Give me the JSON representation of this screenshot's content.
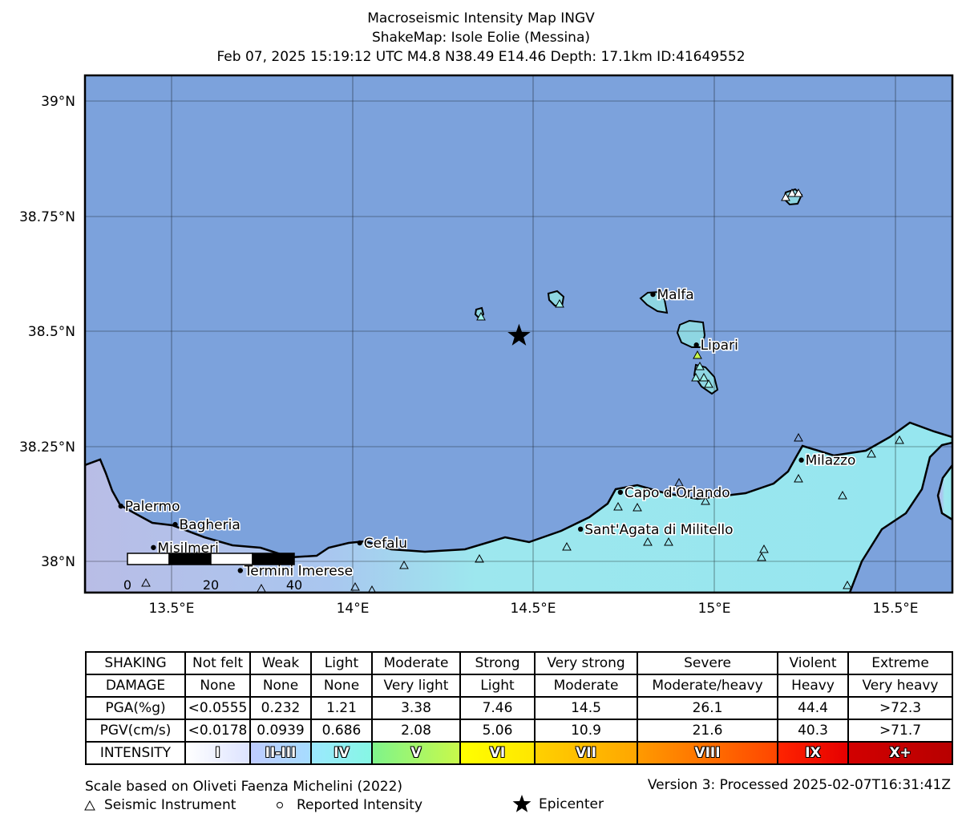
{
  "header": {
    "line1": "Macroseismic Intensity Map INGV",
    "line2": "ShakeMap: Isole Eolie (Messina)",
    "line3": "Feb 07, 2025 15:19:12 UTC M4.8 N38.49 E14.46 Depth: 17.1km ID:41649552"
  },
  "map": {
    "lat_ticks": [
      "39°N",
      "38.75°N",
      "38.5°N",
      "38.25°N",
      "38°N"
    ],
    "lon_ticks": [
      "13.5°E",
      "14°E",
      "14.5°E",
      "15°E",
      "15.5°E"
    ],
    "sea_color": "#7ca2dc",
    "land_color": "#aee6ef",
    "epicenter": {
      "lon": 14.46,
      "lat": 38.49
    },
    "places": [
      {
        "name": "Palermo",
        "lon": 13.36,
        "lat": 38.12
      },
      {
        "name": "Bagheria",
        "lon": 13.51,
        "lat": 38.08
      },
      {
        "name": "Misilmeri",
        "lon": 13.45,
        "lat": 38.03
      },
      {
        "name": "Termini Imerese",
        "lon": 13.69,
        "lat": 37.98
      },
      {
        "name": "Cefalu",
        "lon": 14.02,
        "lat": 38.04
      },
      {
        "name": "Capo d'Orlando",
        "lon": 14.74,
        "lat": 38.15
      },
      {
        "name": "Sant'Agata di Militello",
        "lon": 14.63,
        "lat": 38.07
      },
      {
        "name": "Malfa",
        "lon": 14.83,
        "lat": 38.58
      },
      {
        "name": "Lipari",
        "lon": 14.95,
        "lat": 38.47
      },
      {
        "name": "Milazzo",
        "lon": 15.24,
        "lat": 38.22
      }
    ],
    "scale_bar": {
      "labels": [
        "0",
        "20",
        "40"
      ]
    }
  },
  "legend": {
    "shaking": {
      "label": "SHAKING",
      "values": [
        "Not felt",
        "Weak",
        "Light",
        "Moderate",
        "Strong",
        "Very strong",
        "Severe",
        "Violent",
        "Extreme"
      ]
    },
    "damage": {
      "label": "DAMAGE",
      "values": [
        "None",
        "None",
        "None",
        "Very light",
        "Light",
        "Moderate",
        "Moderate/heavy",
        "Heavy",
        "Very heavy"
      ]
    },
    "pga": {
      "label": "PGA(%g)",
      "values": [
        "<0.0555",
        "0.232",
        "1.21",
        "3.38",
        "7.46",
        "14.5",
        "26.1",
        "44.4",
        ">72.3"
      ]
    },
    "pgv": {
      "label": "PGV(cm/s)",
      "values": [
        "<0.0178",
        "0.0939",
        "0.686",
        "2.08",
        "5.06",
        "10.9",
        "21.6",
        "40.3",
        ">71.7"
      ]
    },
    "intensity": {
      "label": "INTENSITY",
      "values": [
        "I",
        "II-III",
        "IV",
        "V",
        "VI",
        "VII",
        "VIII",
        "IX",
        "X+"
      ],
      "colors": [
        [
          "#ffffff",
          "#dde3ff"
        ],
        [
          "#bfccff",
          "#a6dcff"
        ],
        [
          "#9ce8ff",
          "#86f7e4"
        ],
        [
          "#7ff48b",
          "#c8f94a"
        ],
        [
          "#ffff00",
          "#ffe600"
        ],
        [
          "#ffd100",
          "#ffa600"
        ],
        [
          "#ff9a00",
          "#ff4600"
        ],
        [
          "#ff2400",
          "#e60000"
        ],
        [
          "#d20000",
          "#b80000"
        ]
      ]
    }
  },
  "footer": {
    "scale_note": "Scale based on Oliveti Faenza Michelini (2022)",
    "version": "Version 3: Processed 2025-02-07T16:31:41Z",
    "instrument_label": "Seismic Instrument",
    "reported_label": "Reported Intensity",
    "epicenter_label": "Epicenter"
  }
}
